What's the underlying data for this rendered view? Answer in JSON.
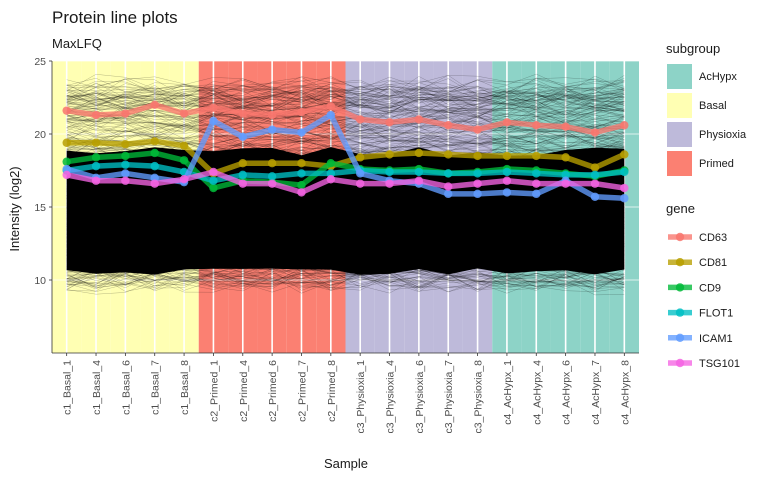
{
  "chart_data": {
    "type": "line",
    "title": "Protein line plots",
    "subtitle": "MaxLFQ",
    "xlabel": "Sample",
    "ylabel": "Intensity (log2)",
    "ylim": [
      5,
      25
    ],
    "yticks": [
      10,
      15,
      20,
      25
    ],
    "categories": [
      "c1_Basal_1",
      "c1_Basal_4",
      "c1_Basal_6",
      "c1_Basal_7",
      "c1_Basal_8",
      "c2_Primed_1",
      "c2_Primed_4",
      "c2_Primed_6",
      "c2_Primed_7",
      "c2_Primed_8",
      "c3_Physioxia_1",
      "c3_Physioxia_4",
      "c3_Physioxia_6",
      "c3_Physioxia_7",
      "c3_Physioxia_8",
      "c4_AcHypx_1",
      "c4_AcHypx_4",
      "c4_AcHypx_6",
      "c4_AcHypx_7",
      "c4_AcHypx_8"
    ],
    "sample_subgroups": [
      "Basal",
      "Basal",
      "Basal",
      "Basal",
      "Basal",
      "Primed",
      "Primed",
      "Primed",
      "Primed",
      "Primed",
      "Physioxia",
      "Physioxia",
      "Physioxia",
      "Physioxia",
      "Physioxia",
      "AcHypx",
      "AcHypx",
      "AcHypx",
      "AcHypx",
      "AcHypx"
    ],
    "background_lines": {
      "color": "#000000",
      "range": [
        9.5,
        23.5
      ]
    },
    "subgroup_legend": {
      "title": "subgroup",
      "items": [
        {
          "name": "AcHypx",
          "color": "#8dd3c7"
        },
        {
          "name": "Basal",
          "color": "#ffffb3"
        },
        {
          "name": "Physioxia",
          "color": "#bebada"
        },
        {
          "name": "Primed",
          "color": "#fb8072"
        }
      ]
    },
    "gene_legend_title": "gene",
    "series": [
      {
        "name": "CD63",
        "color": "#f8766d",
        "values": [
          21.6,
          21.3,
          21.4,
          22.0,
          21.4,
          21.8,
          21.4,
          21.3,
          21.5,
          21.9,
          21.0,
          20.8,
          21.0,
          20.6,
          20.3,
          20.8,
          20.6,
          20.5,
          20.1,
          20.6
        ]
      },
      {
        "name": "CD81",
        "color": "#b79f00",
        "values": [
          19.4,
          19.4,
          19.3,
          19.5,
          19.2,
          17.3,
          18.0,
          18.0,
          18.0,
          17.8,
          18.4,
          18.6,
          18.7,
          18.6,
          18.5,
          18.5,
          18.5,
          18.4,
          17.7,
          18.6
        ]
      },
      {
        "name": "CD9",
        "color": "#00ba38",
        "values": [
          18.1,
          18.4,
          18.5,
          18.7,
          18.2,
          16.3,
          16.8,
          16.7,
          16.5,
          18.0,
          17.6,
          17.5,
          17.6,
          17.3,
          17.4,
          17.6,
          17.5,
          17.3,
          17.1,
          17.5
        ]
      },
      {
        "name": "FLOT1",
        "color": "#00bfc4",
        "values": [
          17.5,
          17.8,
          17.9,
          17.8,
          17.4,
          16.8,
          17.2,
          17.1,
          17.3,
          17.3,
          17.5,
          17.4,
          17.4,
          17.3,
          17.3,
          17.4,
          17.3,
          17.2,
          17.2,
          17.4
        ]
      },
      {
        "name": "ICAM1",
        "color": "#619cff",
        "values": [
          17.6,
          17.0,
          17.3,
          17.0,
          16.7,
          20.9,
          19.8,
          20.3,
          20.1,
          21.3,
          17.3,
          16.8,
          16.6,
          15.9,
          15.9,
          16.0,
          15.9,
          16.8,
          15.7,
          15.6
        ]
      },
      {
        "name": "TSG101",
        "color": "#f564e3",
        "values": [
          17.2,
          16.8,
          16.8,
          16.6,
          16.9,
          17.4,
          16.6,
          16.6,
          16.0,
          16.9,
          16.6,
          16.6,
          16.8,
          16.4,
          16.6,
          16.8,
          16.6,
          16.6,
          16.6,
          16.3
        ]
      }
    ]
  }
}
